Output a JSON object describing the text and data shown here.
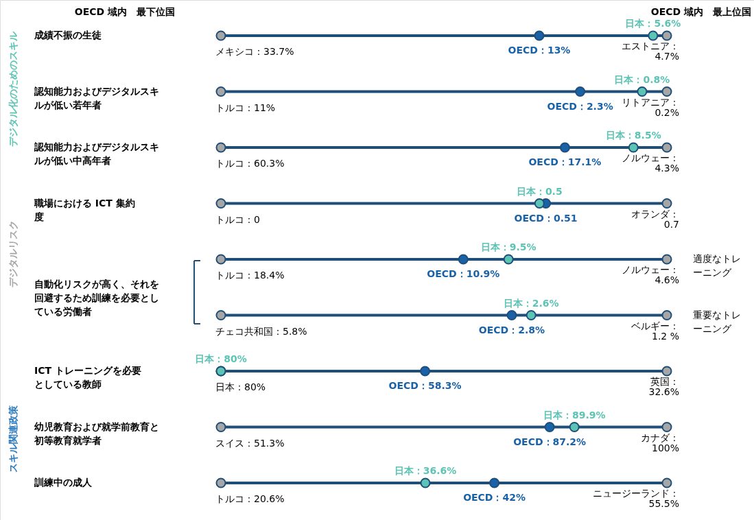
{
  "chart_data": {
    "type": "other",
    "color": "#1f4e79",
    "categories": [
      "成績不振の生徒",
      "認知能力およびデジタルスキルが低い若年者",
      "認知能力およびデジタルスキルが低い中高年者",
      "職場における ICT 集約度",
      "適度なトレーニング",
      "重要なトレーニング",
      "ICT トレーニングを必要としている教師",
      "幼児教育および就学前教育と初等教育就学者",
      "訓練中の成人"
    ],
    "series": [
      {
        "color": "#a6a6a6",
        "values": [
          33.7,
          11,
          60.3,
          0,
          18.4,
          5.8,
          80,
          51.3,
          20.6
        ],
        "value_labels": [
          "メキシコ：33.7%",
          "トルコ：11%",
          "トルコ：60.3%",
          "トルコ：0",
          "トルコ：18.4%",
          "チェコ共和国：5.8%",
          "日本：80%",
          "スイス：51.3%",
          "トルコ：20.6%"
        ]
      },
      {
        "color": "#a6a6a6",
        "values": [
          4.7,
          0.2,
          4.3,
          0.7,
          4.6,
          1.2,
          32.6,
          100,
          55.5
        ],
        "value_labels": [
          "エストニア：4.7%",
          "リトアニア：0.2%",
          "ノルウェー：4.3%",
          "オランダ：0.7",
          "ノルウェー：4.6%",
          "ベルギー：1.2 %",
          "英国：32.6%",
          "カナダ：100%",
          "ニュージーランド：55.5%"
        ]
      },
      {
        "color": "#1a62a8",
        "values": [
          13,
          2.3,
          17.1,
          0.51,
          10.9,
          2.8,
          58.3,
          87.2,
          42
        ],
        "value_labels": [
          "OECD：13%",
          "OECD：2.3%",
          "OECD：17.1%",
          "OECD：0.51",
          "OECD：10.9%",
          "OECD：2.8%",
          "OECD：58.3%",
          "OECD：87.2%",
          "OECD：42%"
        ]
      },
      {
        "color": "#5cc4b4",
        "values": [
          5.6,
          0.8,
          8.5,
          0.5,
          9.5,
          2.6,
          80,
          89.9,
          36.6
        ],
        "value_labels": [
          "日本：5.6%",
          "日本：0.8%",
          "日本：8.5%",
          "日本：0.5",
          "日本：9.5%",
          "日本：2.6%",
          "日本：80%",
          "日本：89.9%",
          "日本：36.6%"
        ]
      }
    ],
    "annotations": [
      "OECD 域内　最下位国",
      "OECD 域内　最上位国",
      "デジタル化のためのスキル",
      "デジタルリスク",
      "スキル関連政策",
      "自動化リスクが高く、それを回避するため訓練を必要としている労働者"
    ]
  }
}
